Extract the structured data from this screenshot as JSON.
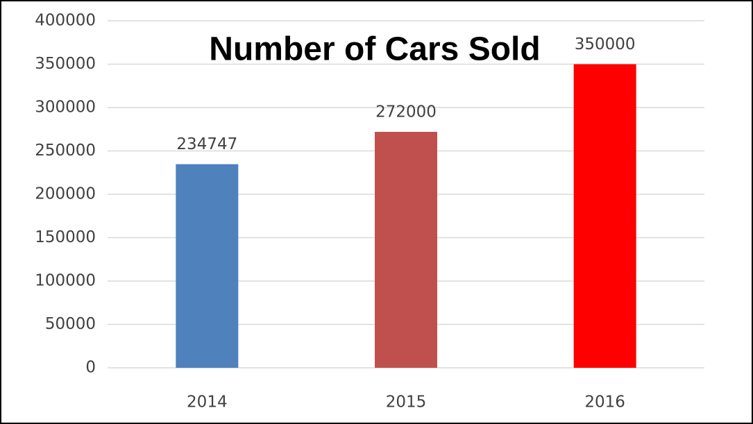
{
  "chart_data": {
    "type": "bar",
    "title": "Number of Cars Sold",
    "categories": [
      "2014",
      "2015",
      "2016"
    ],
    "values": [
      234747,
      272000,
      350000
    ],
    "colors": [
      "#4f81bd",
      "#c0504d",
      "#ff0000"
    ],
    "ylim": [
      0,
      400000
    ],
    "yticks": [
      0,
      50000,
      100000,
      150000,
      200000,
      250000,
      300000,
      350000,
      400000
    ],
    "grid": true
  }
}
